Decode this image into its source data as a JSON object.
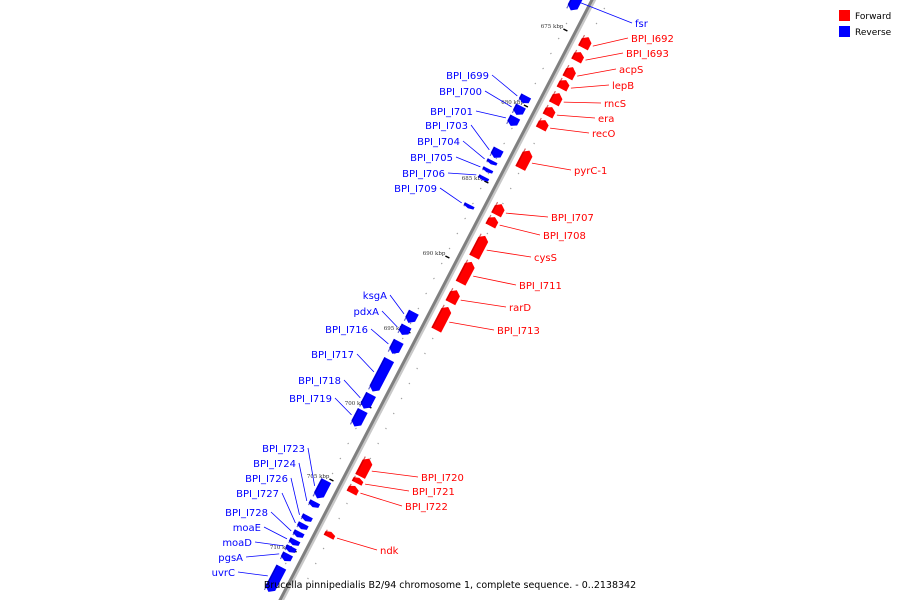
{
  "legend": [
    {
      "label": "Forward",
      "color": "#ff0000"
    },
    {
      "label": "Reverse",
      "color": "#0000ff"
    }
  ],
  "caption": "Brucella pinnipedialis B2/94 chromosome 1, complete sequence. - 0..2138342",
  "colors": {
    "forward": "#ff0000",
    "reverse": "#0000ff",
    "backbone": "#808080"
  },
  "ticks": [
    {
      "label": "675 kbp",
      "kbp": 675
    },
    {
      "label": "680 kbp",
      "kbp": 680
    },
    {
      "label": "685 kbp",
      "kbp": 685
    },
    {
      "label": "690 kbp",
      "kbp": 690
    },
    {
      "label": "695 kbp",
      "kbp": 695
    },
    {
      "label": "700 kbp",
      "kbp": 700
    },
    {
      "label": "705 kbp",
      "kbp": 705
    },
    {
      "label": "710 kbp",
      "kbp": 710
    }
  ],
  "genes": [
    {
      "name": "fsr",
      "strand": "reverse"
    },
    {
      "name": "BPI_I692",
      "strand": "forward"
    },
    {
      "name": "BPI_I693",
      "strand": "forward"
    },
    {
      "name": "acpS",
      "strand": "forward"
    },
    {
      "name": "lepB",
      "strand": "forward"
    },
    {
      "name": "rncS",
      "strand": "forward"
    },
    {
      "name": "era",
      "strand": "forward"
    },
    {
      "name": "recO",
      "strand": "forward"
    },
    {
      "name": "BPI_I699",
      "strand": "reverse"
    },
    {
      "name": "BPI_I700",
      "strand": "reverse"
    },
    {
      "name": "BPI_I701",
      "strand": "reverse"
    },
    {
      "name": "BPI_I703",
      "strand": "reverse"
    },
    {
      "name": "BPI_I704",
      "strand": "reverse"
    },
    {
      "name": "BPI_I705",
      "strand": "reverse"
    },
    {
      "name": "BPI_I706",
      "strand": "reverse"
    },
    {
      "name": "BPI_I709",
      "strand": "reverse"
    },
    {
      "name": "pyrC-1",
      "strand": "forward"
    },
    {
      "name": "BPI_I707",
      "strand": "forward"
    },
    {
      "name": "BPI_I708",
      "strand": "forward"
    },
    {
      "name": "cysS",
      "strand": "forward"
    },
    {
      "name": "BPI_I711",
      "strand": "forward"
    },
    {
      "name": "rarD",
      "strand": "forward"
    },
    {
      "name": "BPI_I713",
      "strand": "forward"
    },
    {
      "name": "ksgA",
      "strand": "reverse"
    },
    {
      "name": "pdxA",
      "strand": "reverse"
    },
    {
      "name": "BPI_I716",
      "strand": "reverse"
    },
    {
      "name": "BPI_I717",
      "strand": "reverse"
    },
    {
      "name": "BPI_I718",
      "strand": "reverse"
    },
    {
      "name": "BPI_I719",
      "strand": "reverse"
    },
    {
      "name": "BPI_I723",
      "strand": "reverse"
    },
    {
      "name": "BPI_I724",
      "strand": "reverse"
    },
    {
      "name": "BPI_I726",
      "strand": "reverse"
    },
    {
      "name": "BPI_I727",
      "strand": "reverse"
    },
    {
      "name": "BPI_I728",
      "strand": "reverse"
    },
    {
      "name": "moaE",
      "strand": "reverse"
    },
    {
      "name": "moaD",
      "strand": "reverse"
    },
    {
      "name": "pgsA",
      "strand": "reverse"
    },
    {
      "name": "uvrC",
      "strand": "reverse"
    },
    {
      "name": "BPI_I720",
      "strand": "forward"
    },
    {
      "name": "BPI_I721",
      "strand": "forward"
    },
    {
      "name": "BPI_I722",
      "strand": "forward"
    },
    {
      "name": "ndk",
      "strand": "forward"
    }
  ]
}
